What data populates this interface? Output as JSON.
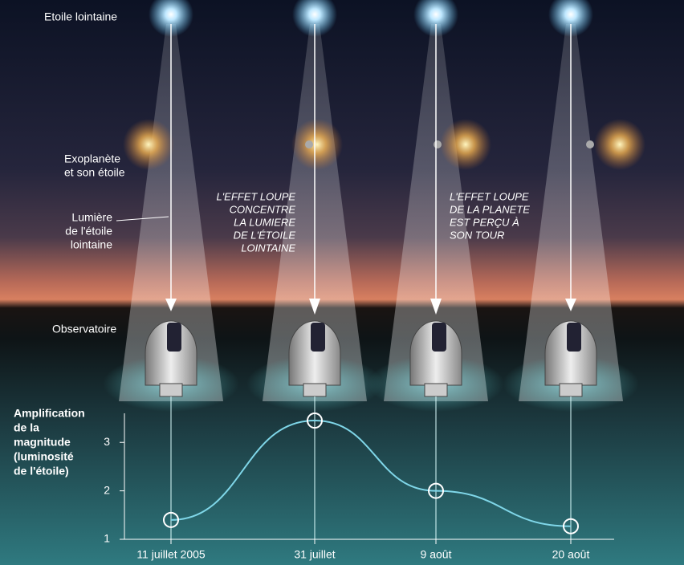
{
  "labels": {
    "distant_star": "Etoile lointaine",
    "exoplanet": [
      "Exoplanète",
      "et son étoile"
    ],
    "light": [
      "Lumière",
      "de l'étoile",
      "lointaine"
    ],
    "observatory": "Observatoire"
  },
  "annotations": [
    [
      "L'EFFET LOUPE",
      "CONCENTRE",
      "LA LUMIERE",
      "DE L'ÉTOILE",
      "LOINTAINE"
    ],
    [
      "L'EFFET LOUPE",
      "DE LA PLANETE",
      "EST PERÇU À",
      "SON TOUR"
    ]
  ],
  "chart_data": {
    "type": "line",
    "ylabel": [
      "Amplification",
      "de la",
      "magnitude",
      "(luminosité",
      "de l'étoile)"
    ],
    "categories": [
      "11 juillet 2005",
      "31 juillet",
      "9 août",
      "20 août"
    ],
    "values": [
      1.4,
      3.45,
      2.0,
      1.27
    ],
    "color": "#7fd6e8",
    "ylim": [
      1,
      3.6
    ],
    "yticks": [
      1,
      2,
      3
    ]
  }
}
